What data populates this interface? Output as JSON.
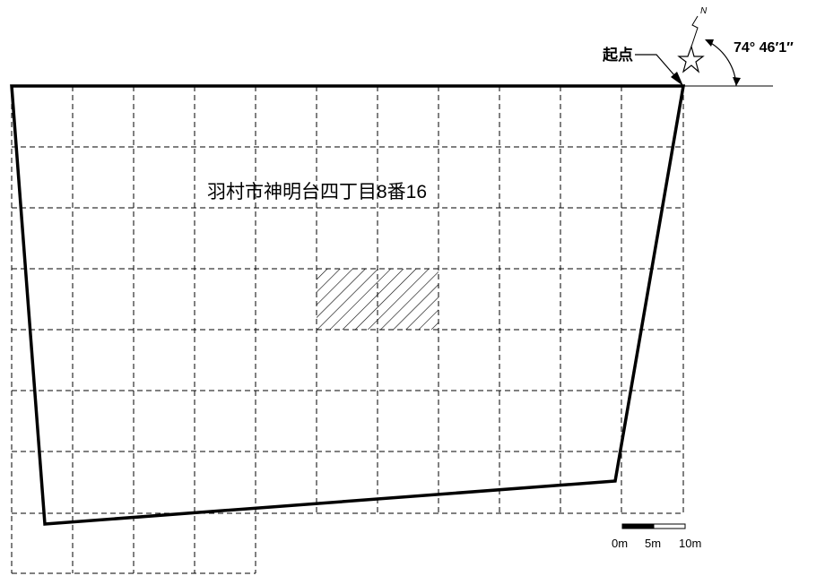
{
  "parcel": {
    "address": "羽村市神明台四丁目8番16"
  },
  "start_point": {
    "label": "起点",
    "bearing": "74°  46′1″"
  },
  "north": {
    "label": "N"
  },
  "scale_bar": {
    "labels": [
      "0m",
      "5m",
      "10m"
    ]
  },
  "colors": {
    "line": "#000000",
    "background": "#ffffff"
  },
  "icons": [
    "north-compass-icon",
    "leader-arrow-icon"
  ]
}
